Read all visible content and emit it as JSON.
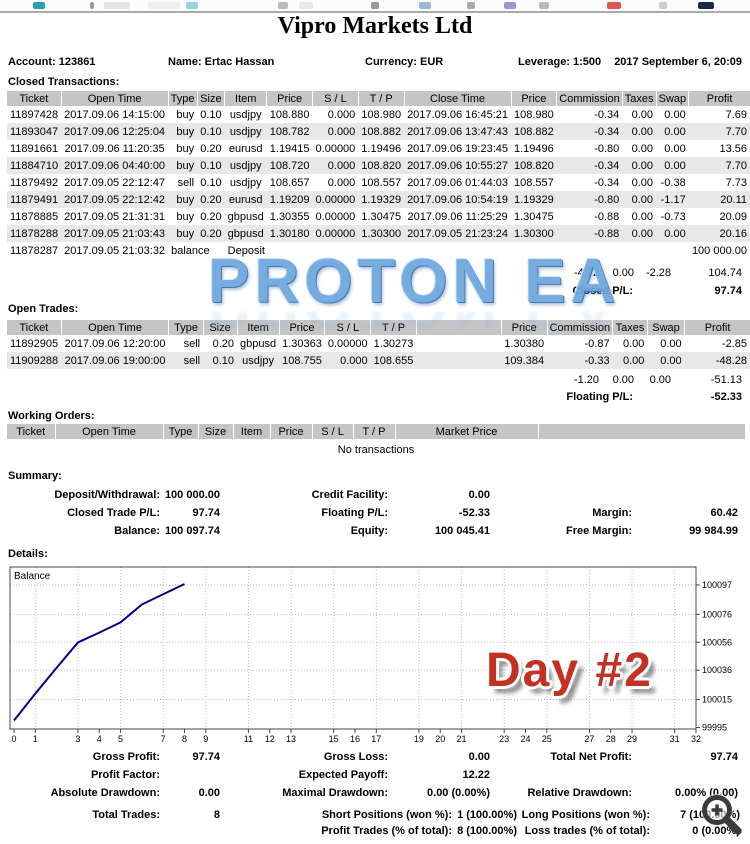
{
  "header": {
    "title": "Vipro Markets Ltd",
    "account": "Account: 123861",
    "name": "Name: Ertac Hassan",
    "currency": "Currency: EUR",
    "leverage": "Leverage: 1:500",
    "date": "2017 September 6, 20:09"
  },
  "closed": {
    "section_label": "Closed Transactions:",
    "columns": [
      "Ticket",
      "Open Time",
      "Type",
      "Size",
      "Item",
      "Price",
      "S / L",
      "T / P",
      "Close Time",
      "Price",
      "Commission",
      "Taxes",
      "Swap",
      "Profit"
    ],
    "rows": [
      [
        "11897428",
        "2017.09.06 14:15:00",
        "buy",
        "0.10",
        "usdjpy",
        "108.880",
        "0.000",
        "108.980",
        "2017.09.06 16:45:21",
        "108.980",
        "-0.34",
        "0.00",
        "0.00",
        "7.69"
      ],
      [
        "11893047",
        "2017.09.06 12:25:04",
        "buy",
        "0.10",
        "usdjpy",
        "108.782",
        "0.000",
        "108.882",
        "2017.09.06 13:47:43",
        "108.882",
        "-0.34",
        "0.00",
        "0.00",
        "7.70"
      ],
      [
        "11891661",
        "2017.09.06 11:20:35",
        "buy",
        "0.20",
        "eurusd",
        "1.19415",
        "0.00000",
        "1.19496",
        "2017.09.06 19:23:45",
        "1.19496",
        "-0.80",
        "0.00",
        "0.00",
        "13.56"
      ],
      [
        "11884710",
        "2017.09.06 04:40:00",
        "buy",
        "0.10",
        "usdjpy",
        "108.720",
        "0.000",
        "108.820",
        "2017.09.06 10:55:27",
        "108.820",
        "-0.34",
        "0.00",
        "0.00",
        "7.70"
      ],
      [
        "11879492",
        "2017.09.05 22:12:47",
        "sell",
        "0.10",
        "usdjpy",
        "108.657",
        "0.000",
        "108.557",
        "2017.09.06 01:44:03",
        "108.557",
        "-0.34",
        "0.00",
        "-0.38",
        "7.73"
      ],
      [
        "11879491",
        "2017.09.05 22:12:42",
        "buy",
        "0.20",
        "eurusd",
        "1.19209",
        "0.00000",
        "1.19329",
        "2017.09.06 10:54:19",
        "1.19329",
        "-0.80",
        "0.00",
        "-1.17",
        "20.11"
      ],
      [
        "11878885",
        "2017.09.05 21:31:31",
        "buy",
        "0.20",
        "gbpusd",
        "1.30355",
        "0.00000",
        "1.30475",
        "2017.09.06 11:25:29",
        "1.30475",
        "-0.88",
        "0.00",
        "-0.73",
        "20.09"
      ],
      [
        "11878288",
        "2017.09.05 21:03:43",
        "buy",
        "0.20",
        "gbpusd",
        "1.30180",
        "0.00000",
        "1.30300",
        "2017.09.05 21:23:24",
        "1.30300",
        "-0.88",
        "0.00",
        "0.00",
        "20.16"
      ]
    ],
    "balance_row": {
      "ticket": "11878287",
      "open_time": "2017.09.05 21:03:32",
      "type": "balance",
      "comment": "Deposit",
      "profit": "100 000.00"
    },
    "totals": {
      "commission": "-4.72",
      "taxes": "0.00",
      "swap": "-2.28",
      "profit": "104.74"
    },
    "closed_pl_label": "Closed P/L:",
    "closed_pl_value": "97.74"
  },
  "open": {
    "section_label": "Open Trades:",
    "columns": [
      "Ticket",
      "Open Time",
      "Type",
      "Size",
      "Item",
      "Price",
      "S / L",
      "T / P",
      "",
      "Price",
      "Commission",
      "Taxes",
      "Swap",
      "Profit"
    ],
    "rows": [
      [
        "11892905",
        "2017.09.06 12:20:00",
        "sell",
        "0.20",
        "gbpusd",
        "1.30363",
        "0.00000",
        "1.30273",
        "",
        "1.30380",
        "-0.87",
        "0.00",
        "0.00",
        "-2.85"
      ],
      [
        "11909288",
        "2017.09.06 19:00:00",
        "sell",
        "0.10",
        "usdjpy",
        "108.755",
        "0.000",
        "108.655",
        "",
        "109.384",
        "-0.33",
        "0.00",
        "0.00",
        "-48.28"
      ]
    ],
    "totals": {
      "commission": "-1.20",
      "taxes": "0.00",
      "swap": "0.00",
      "profit": "-51.13"
    },
    "floating_pl_label": "Floating P/L:",
    "floating_pl_value": "-52.33"
  },
  "working": {
    "section_label": "Working Orders:",
    "columns": [
      "Ticket",
      "Open Time",
      "Type",
      "Size",
      "Item",
      "Price",
      "S / L",
      "T / P",
      "Market Price",
      ""
    ],
    "empty_text": "No transactions"
  },
  "summary": {
    "section_label": "Summary:",
    "rows": [
      [
        {
          "label": "Deposit/Withdrawal:",
          "value": "100 000.00"
        },
        {
          "label": "Credit Facility:",
          "value": "0.00"
        },
        null
      ],
      [
        {
          "label": "Closed Trade P/L:",
          "value": "97.74"
        },
        {
          "label": "Floating P/L:",
          "value": "-52.33"
        },
        {
          "label": "Margin:",
          "value": "60.42"
        }
      ],
      [
        {
          "label": "Balance:",
          "value": "100 097.74"
        },
        {
          "label": "Equity:",
          "value": "100 045.41"
        },
        {
          "label": "Free Margin:",
          "value": "99 984.99"
        }
      ]
    ]
  },
  "details": {
    "section_label": "Details:",
    "stats_rows": [
      [
        {
          "label": "Gross Profit:",
          "value": "97.74"
        },
        {
          "label": "Gross Loss:",
          "value": "0.00"
        },
        {
          "label": "Total Net Profit:",
          "value": "97.74"
        }
      ],
      [
        {
          "label": "Profit Factor:",
          "value": ""
        },
        {
          "label": "Expected Payoff:",
          "value": "12.22"
        },
        null
      ],
      [
        {
          "label": "Absolute Drawdown:",
          "value": "0.00"
        },
        {
          "label": "Maximal Drawdown:",
          "value": "0.00 (0.00%)"
        },
        {
          "label": "Relative Drawdown:",
          "value": "0.00% (0.00)"
        }
      ]
    ],
    "trade_rows": [
      [
        {
          "label": "Total Trades:",
          "value": "8"
        },
        {
          "label": "Short Positions (won %):",
          "value": "1 (100.00%)"
        },
        {
          "label": "Long Positions (won %):",
          "value": "7 (100.00%)"
        }
      ],
      [
        null,
        {
          "label": "Profit Trades (% of total):",
          "value": "8 (100.00%)"
        },
        {
          "label": "Loss trades (% of total):",
          "value": "0 (0.00%)"
        }
      ]
    ]
  },
  "overlays": {
    "watermark_text": "PROTON EA",
    "day_label": "Day #2",
    "watermark_color": "#6ca6de",
    "day_color": "#c43122"
  },
  "icons": {
    "zoom": "zoom-in-magnifier"
  },
  "chart_data": {
    "type": "line",
    "title": "Balance",
    "legend_label": "Balance",
    "x": [
      0,
      1,
      2,
      3,
      4,
      5,
      6,
      7,
      8
    ],
    "values": [
      100000.0,
      100019.28,
      100037.76,
      100055.9,
      100062.91,
      100070.27,
      100083.03,
      100090.39,
      100097.74
    ],
    "x_tick_labels": [
      0,
      1,
      3,
      4,
      5,
      7,
      8,
      9,
      11,
      12,
      13,
      15,
      16,
      17,
      19,
      20,
      21,
      23,
      24,
      25,
      27,
      28,
      29,
      31,
      32
    ],
    "y_tick_labels": [
      100097,
      100076,
      100056,
      100036,
      100015,
      99995
    ],
    "xlim": [
      0,
      32.2
    ],
    "ylim": [
      99990,
      100102
    ],
    "grid": true,
    "legend_position": "top-left",
    "y_axis_side": "right",
    "line_color": "#00008b"
  }
}
